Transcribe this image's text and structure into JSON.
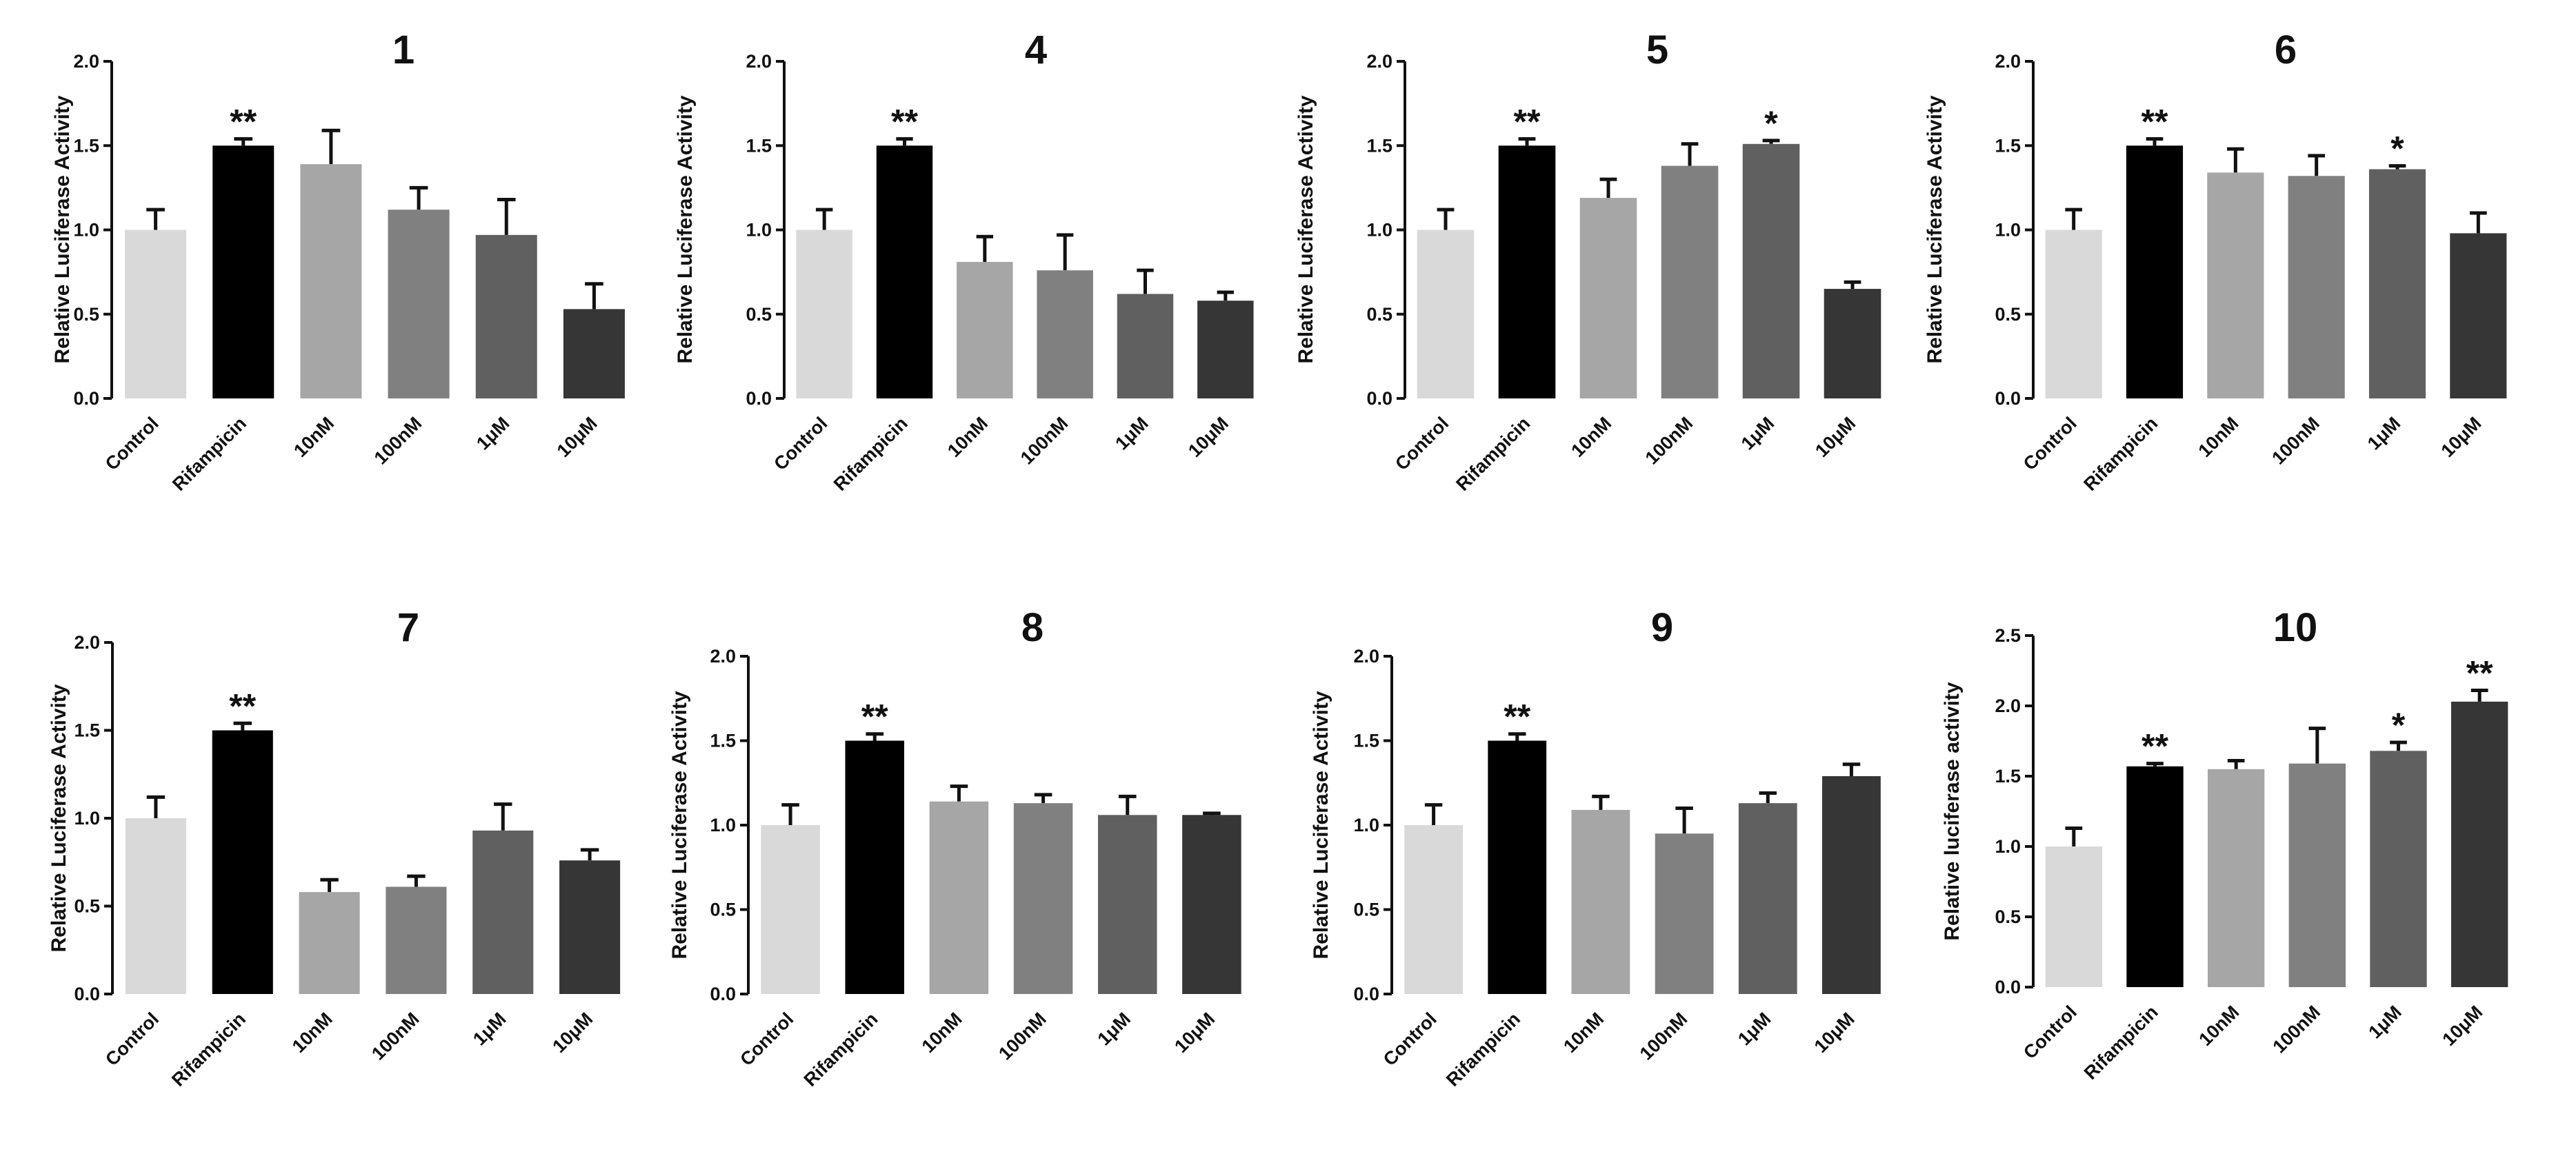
{
  "chart_data": [
    {
      "type": "bar",
      "title": "1",
      "ylabel": "Relative Luciferase Activity",
      "ylim": [
        0,
        2.0
      ],
      "yticks": [
        "0.0",
        "0.5",
        "1.0",
        "1.5",
        "2.0"
      ],
      "categories": [
        "Control",
        "Rifampicin",
        "10nM",
        "100nM",
        "1μM",
        "10μM"
      ],
      "values": [
        1.0,
        1.5,
        1.39,
        1.12,
        0.97,
        0.53
      ],
      "errors": [
        0.12,
        0.04,
        0.2,
        0.13,
        0.21,
        0.15
      ],
      "significance": [
        "",
        "**",
        "",
        "",
        "",
        ""
      ]
    },
    {
      "type": "bar",
      "title": "4",
      "ylabel": "Relative Luciferase Activity",
      "ylim": [
        0,
        2.0
      ],
      "yticks": [
        "0.0",
        "0.5",
        "1.0",
        "1.5",
        "2.0"
      ],
      "categories": [
        "Control",
        "Rifampicin",
        "10nM",
        "100nM",
        "1μM",
        "10μM"
      ],
      "values": [
        1.0,
        1.5,
        0.81,
        0.76,
        0.62,
        0.58
      ],
      "errors": [
        0.12,
        0.04,
        0.15,
        0.21,
        0.14,
        0.05
      ],
      "significance": [
        "",
        "**",
        "",
        "",
        "",
        ""
      ]
    },
    {
      "type": "bar",
      "title": "5",
      "ylabel": "Relative Luciferase Activity",
      "ylim": [
        0,
        2.0
      ],
      "yticks": [
        "0.0",
        "0.5",
        "1.0",
        "1.5",
        "2.0"
      ],
      "categories": [
        "Control",
        "Rifampicin",
        "10nM",
        "100nM",
        "1μM",
        "10μM"
      ],
      "values": [
        1.0,
        1.5,
        1.19,
        1.38,
        1.51,
        0.65
      ],
      "errors": [
        0.12,
        0.04,
        0.11,
        0.13,
        0.02,
        0.04
      ],
      "significance": [
        "",
        "**",
        "",
        "",
        "*",
        ""
      ]
    },
    {
      "type": "bar",
      "title": "6",
      "ylabel": "Relative Luciferase Activity",
      "ylim": [
        0,
        2.0
      ],
      "yticks": [
        "0.0",
        "0.5",
        "1.0",
        "1.5",
        "2.0"
      ],
      "categories": [
        "Control",
        "Rifampicin",
        "10nM",
        "100nM",
        "1μM",
        "10μM"
      ],
      "values": [
        1.0,
        1.5,
        1.34,
        1.32,
        1.36,
        0.98
      ],
      "errors": [
        0.12,
        0.04,
        0.14,
        0.12,
        0.02,
        0.12
      ],
      "significance": [
        "",
        "**",
        "",
        "",
        "*",
        ""
      ]
    },
    {
      "type": "bar",
      "title": "7",
      "ylabel": "Relative Luciferase Activity",
      "ylim": [
        0,
        2.0
      ],
      "yticks": [
        "0.0",
        "0.5",
        "1.0",
        "1.5",
        "2.0"
      ],
      "categories": [
        "Control",
        "Rifampicin",
        "10nM",
        "100nM",
        "1μM",
        "10μM"
      ],
      "values": [
        1.0,
        1.5,
        0.58,
        0.61,
        0.93,
        0.76
      ],
      "errors": [
        0.12,
        0.04,
        0.07,
        0.06,
        0.15,
        0.06
      ],
      "significance": [
        "",
        "**",
        "",
        "",
        "",
        ""
      ]
    },
    {
      "type": "bar",
      "title": "8",
      "ylabel": "Relative Luciferase Activity",
      "ylim": [
        0,
        2.0
      ],
      "yticks": [
        "0.0",
        "0.5",
        "1.0",
        "1.5",
        "2.0"
      ],
      "categories": [
        "Control",
        "Rifampicin",
        "10nM",
        "100nM",
        "1μM",
        "10μM"
      ],
      "values": [
        1.0,
        1.5,
        1.14,
        1.13,
        1.06,
        1.06
      ],
      "errors": [
        0.12,
        0.04,
        0.09,
        0.05,
        0.11,
        0.01
      ],
      "significance": [
        "",
        "**",
        "",
        "",
        "",
        ""
      ]
    },
    {
      "type": "bar",
      "title": "9",
      "ylabel": "Relative Luciferase Activity",
      "ylim": [
        0,
        2.0
      ],
      "yticks": [
        "0.0",
        "0.5",
        "1.0",
        "1.5",
        "2.0"
      ],
      "categories": [
        "Control",
        "Rifampicin",
        "10nM",
        "100nM",
        "1μM",
        "10μM"
      ],
      "values": [
        1.0,
        1.5,
        1.09,
        0.95,
        1.13,
        1.29
      ],
      "errors": [
        0.12,
        0.04,
        0.08,
        0.15,
        0.06,
        0.07
      ],
      "significance": [
        "",
        "**",
        "",
        "",
        "",
        ""
      ]
    },
    {
      "type": "bar",
      "title": "10",
      "ylabel": "Relative luciferase activity",
      "ylim": [
        0,
        2.5
      ],
      "yticks": [
        "0.0",
        "0.5",
        "1.0",
        "1.5",
        "2.0",
        "2.5"
      ],
      "categories": [
        "Control",
        "Rifampicin",
        "10nM",
        "100nM",
        "1μM",
        "10μM"
      ],
      "values": [
        1.0,
        1.57,
        1.55,
        1.59,
        1.68,
        2.03
      ],
      "errors": [
        0.13,
        0.02,
        0.06,
        0.25,
        0.06,
        0.08
      ],
      "significance": [
        "",
        "**",
        "",
        "",
        "*",
        "**"
      ]
    }
  ],
  "bar_colors": [
    "#d9d9d9",
    "#000000",
    "#a6a6a6",
    "#808080",
    "#606060",
    "#363636"
  ]
}
